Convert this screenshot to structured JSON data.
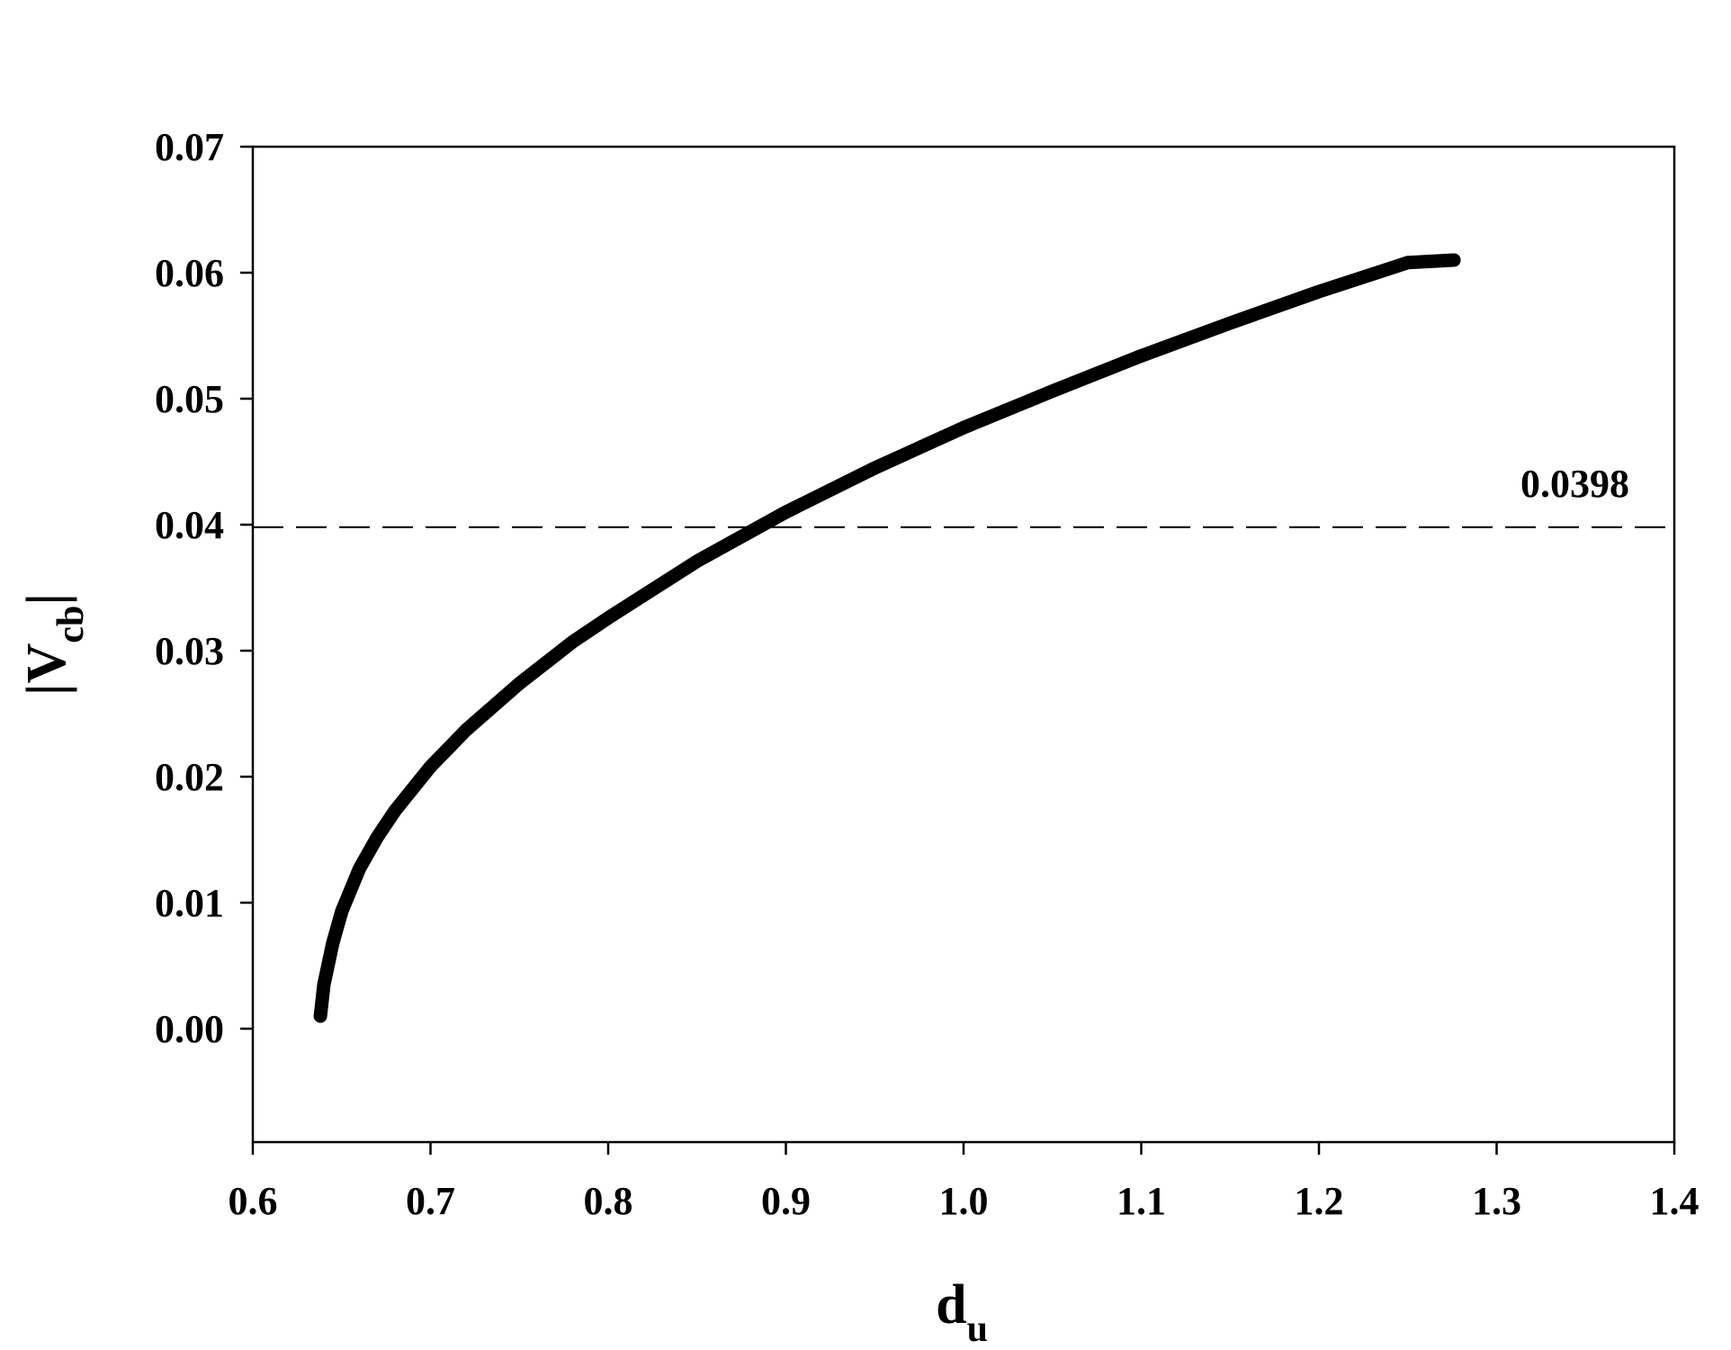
{
  "chart_data": {
    "type": "line",
    "title": "",
    "xlabel": {
      "main": "d",
      "sub": "u"
    },
    "ylabel": {
      "pre": "|V",
      "sub": "cb",
      "post": "|"
    },
    "xlim": [
      0.6,
      1.4
    ],
    "ylim": [
      -0.009,
      0.07
    ],
    "x_ticks": [
      "0.6",
      "0.7",
      "0.8",
      "0.9",
      "1.0",
      "1.1",
      "1.2",
      "1.3",
      "1.4"
    ],
    "y_ticks": [
      "0.00",
      "0.01",
      "0.02",
      "0.03",
      "0.04",
      "0.05",
      "0.06",
      "0.07"
    ],
    "grid": false,
    "series": [
      {
        "x": [
          0.638,
          0.64,
          0.645,
          0.65,
          0.66,
          0.67,
          0.68,
          0.7,
          0.72,
          0.75,
          0.78,
          0.8,
          0.85,
          0.9,
          0.95,
          1.0,
          1.05,
          1.1,
          1.15,
          1.2,
          1.25,
          1.276
        ],
        "y": [
          0.001,
          0.0035,
          0.0068,
          0.0093,
          0.0127,
          0.0152,
          0.0173,
          0.0208,
          0.0237,
          0.0274,
          0.0307,
          0.0326,
          0.0371,
          0.041,
          0.0445,
          0.0477,
          0.0506,
          0.0534,
          0.056,
          0.0585,
          0.0608,
          0.061
        ]
      }
    ],
    "reference_line": {
      "y": 0.0398,
      "label": "0.0398",
      "style": "dashed"
    }
  }
}
